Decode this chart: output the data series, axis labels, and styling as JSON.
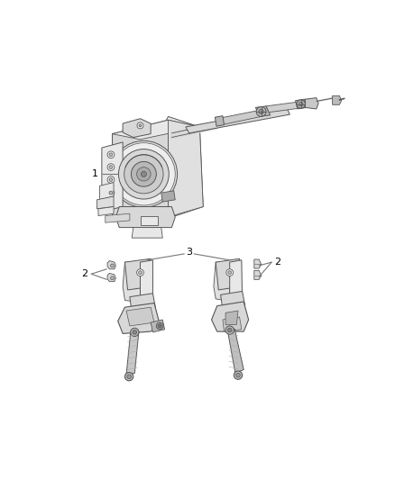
{
  "background_color": "#ffffff",
  "fig_width": 4.38,
  "fig_height": 5.33,
  "dpi": 100,
  "label_1": "1",
  "label_2": "2",
  "label_3": "3",
  "lc": "#555555",
  "lc_thin": "#888888",
  "fc_main": "#e8e8e8",
  "fc_mid": "#d8d8d8",
  "fc_dark": "#b8b8b8",
  "fc_darker": "#a0a0a0",
  "label_font_size": 8,
  "callout_color": "#777777"
}
